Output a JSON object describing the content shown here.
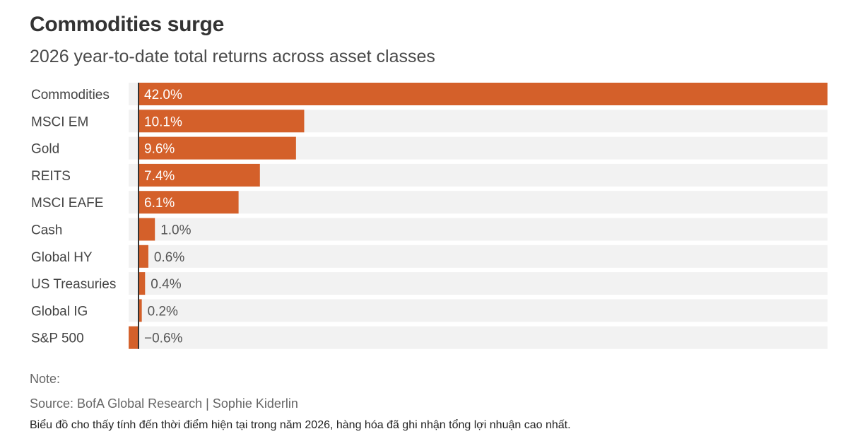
{
  "header": {
    "title": "Commodities surge",
    "subtitle": "2026 year-to-date total returns across asset classes"
  },
  "footer": {
    "note": "Note:",
    "source": "Source: BofA Global Research  | Sophie Kiderlin",
    "caption": "Biểu đồ cho thấy tính đến thời điểm hiện tại trong năm 2026, hàng hóa đã ghi nhận tổng lợi nhuận cao nhất."
  },
  "colors": {
    "bar": "#d4602a",
    "track": "#f2f2f2",
    "baseline": "#333333",
    "label_inside": "#ffffff",
    "label_outside": "#555555"
  },
  "chart_data": {
    "type": "bar",
    "orientation": "horizontal",
    "categories": [
      "Commodities",
      "MSCI EM",
      "Gold",
      "REITS",
      "MSCI EAFE",
      "Cash",
      "Global HY",
      "US Treasuries",
      "Global IG",
      "S&P 500"
    ],
    "values": [
      42.0,
      10.1,
      9.6,
      7.4,
      6.1,
      1.0,
      0.6,
      0.4,
      0.2,
      -0.6
    ],
    "value_labels": [
      "42.0%",
      "10.1%",
      "9.6%",
      "7.4%",
      "6.1%",
      "1.0%",
      "0.6%",
      "0.4%",
      "0.2%",
      "−0.6%"
    ],
    "xlim": [
      -0.6,
      42.0
    ],
    "grid": false,
    "legend": "none"
  }
}
